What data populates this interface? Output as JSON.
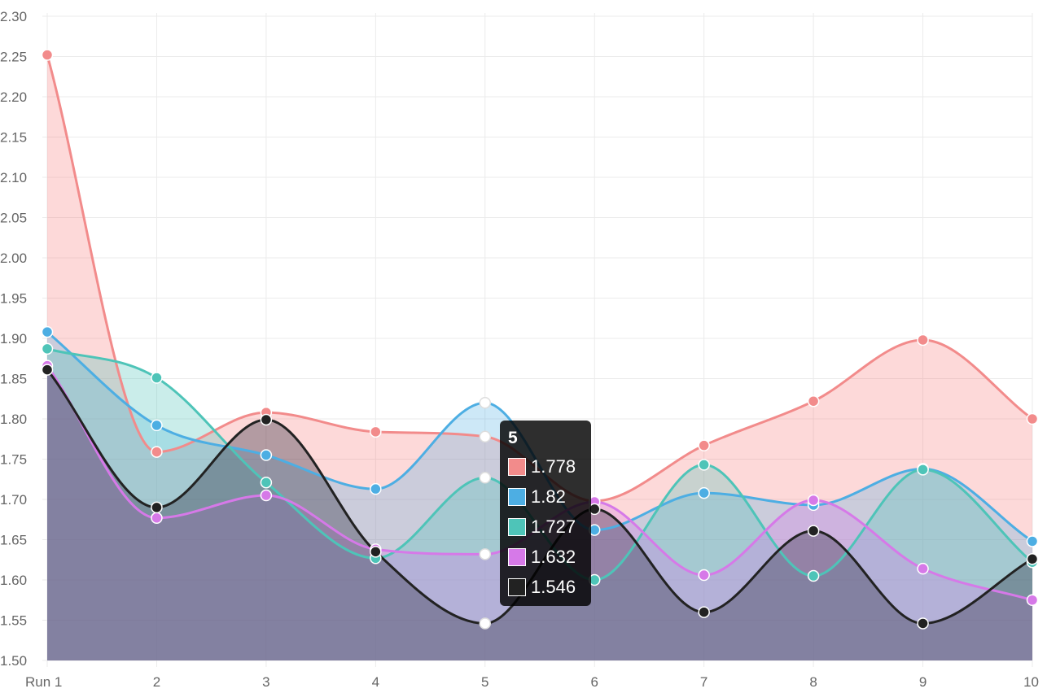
{
  "chart_data": {
    "type": "line",
    "categories": [
      "Run 1",
      "2",
      "3",
      "4",
      "5",
      "6",
      "7",
      "8",
      "9",
      "10"
    ],
    "series": [
      {
        "color": "#f28b8b",
        "fill": "rgba(248,120,120,0.28)",
        "values": [
          2.252,
          1.759,
          1.808,
          1.784,
          1.778,
          1.698,
          1.767,
          1.822,
          1.898,
          1.8
        ]
      },
      {
        "color": "#4daee3",
        "fill": "rgba(77,174,227,0.28)",
        "values": [
          1.908,
          1.792,
          1.755,
          1.713,
          1.82,
          1.662,
          1.708,
          1.693,
          1.738,
          1.648
        ]
      },
      {
        "color": "#4ec4b8",
        "fill": "rgba(78,196,184,0.30)",
        "values": [
          1.887,
          1.851,
          1.721,
          1.627,
          1.727,
          1.6,
          1.743,
          1.605,
          1.737,
          1.622
        ]
      },
      {
        "color": "#d679e8",
        "fill": "rgba(214,121,232,0.30)",
        "values": [
          1.866,
          1.677,
          1.705,
          1.638,
          1.632,
          1.697,
          1.606,
          1.699,
          1.614,
          1.575
        ]
      },
      {
        "color": "#222222",
        "fill": "rgba(40,40,60,0.35)",
        "values": [
          1.861,
          1.69,
          1.799,
          1.635,
          1.546,
          1.688,
          1.56,
          1.661,
          1.546,
          1.626
        ]
      }
    ],
    "ylim": [
      1.5,
      2.3
    ],
    "y_ticks": [
      "1.50",
      "1.55",
      "1.60",
      "1.65",
      "1.70",
      "1.75",
      "1.80",
      "1.85",
      "1.90",
      "1.95",
      "2.00",
      "2.05",
      "2.10",
      "2.15",
      "2.20",
      "2.25",
      "2.30"
    ],
    "grid": true,
    "legend": "none",
    "highlighted_index": 4
  },
  "tooltip": {
    "title": "5",
    "items": [
      {
        "value": "1.778",
        "color": "#f28b8b"
      },
      {
        "value": "1.82",
        "color": "#4daee3"
      },
      {
        "value": "1.727",
        "color": "#4ec4b8"
      },
      {
        "value": "1.632",
        "color": "#d679e8"
      },
      {
        "value": "1.546",
        "color": "#222222"
      }
    ]
  }
}
